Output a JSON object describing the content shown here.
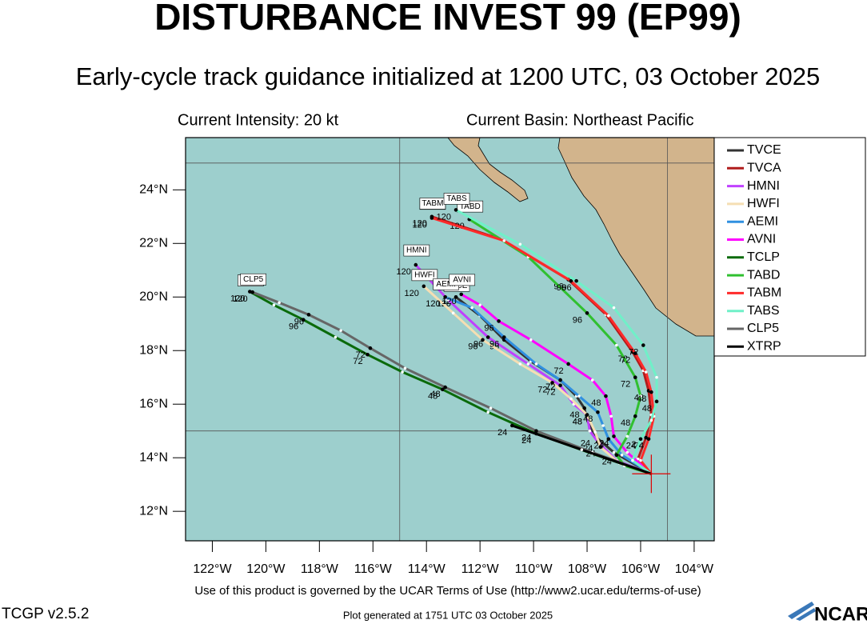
{
  "chart_data": {
    "type": "track-map",
    "title": "DISTURBANCE INVEST 99 (EP99)",
    "subtitle": "Early-cycle track guidance initialized at 1200 UTC, 03 October 2025",
    "intensity": "Current Intensity: 20 kt",
    "basin": "Current Basin: Northeast Pacific",
    "footer": "Use of this product is governed by the UCAR Terms of Use (http://www2.ucar.edu/terms-of-use)",
    "version": "TCGP v2.5.2",
    "generated": "Plot generated at 1751 UTC   03 October 2025",
    "logo": "NCAR",
    "xlim": [
      -123,
      -103.25
    ],
    "ylim": [
      10.9,
      25.95
    ],
    "xticks": [
      {
        "value": -122,
        "label": "122°W"
      },
      {
        "value": -120,
        "label": "120°W"
      },
      {
        "value": -118,
        "label": "118°W"
      },
      {
        "value": -116,
        "label": "116°W"
      },
      {
        "value": -114,
        "label": "114°W"
      },
      {
        "value": -112,
        "label": "112°W"
      },
      {
        "value": -110,
        "label": "110°W"
      },
      {
        "value": -108,
        "label": "108°W"
      },
      {
        "value": -106,
        "label": "106°W"
      },
      {
        "value": -104,
        "label": "104°W"
      }
    ],
    "yticks": [
      {
        "value": 12,
        "label": "12°N"
      },
      {
        "value": 14,
        "label": "14°N"
      },
      {
        "value": 16,
        "label": "16°N"
      },
      {
        "value": 18,
        "label": "18°N"
      },
      {
        "value": 20,
        "label": "20°N"
      },
      {
        "value": 22,
        "label": "22°N"
      },
      {
        "value": 24,
        "label": "24°N"
      }
    ],
    "xgrid": [
      -115,
      -105
    ],
    "ygrid": [
      15,
      25
    ],
    "forecast_hours": [
      0,
      12,
      24,
      36,
      48,
      60,
      72,
      84,
      96,
      108,
      120
    ],
    "series": [
      {
        "name": "TVCE",
        "color": "#333333",
        "x": [
          -105.6,
          -107.0,
          -107.7,
          -108.0,
          -108.1,
          -108.4,
          -109.0,
          -110.1,
          -111.1,
          -112.0,
          -112.9
        ],
        "values": [
          13.4,
          14.2,
          14.8,
          15.4,
          15.85,
          16.3,
          16.9,
          17.6,
          18.4,
          19.3,
          20.0
        ]
      },
      {
        "name": "TVCA",
        "color": "#b01c1c",
        "x": [
          -105.6,
          -106.1,
          -105.8,
          -105.6,
          -105.7,
          -105.9,
          -106.3,
          -107.3,
          -108.7,
          -111.2,
          -113.8
        ],
        "values": [
          13.4,
          13.95,
          14.75,
          15.6,
          16.5,
          17.25,
          17.95,
          19.35,
          20.65,
          22.15,
          23.0
        ]
      },
      {
        "name": "HMNI",
        "color": "#c040ff",
        "x": [
          -105.6,
          -106.9,
          -107.6,
          -107.9,
          -108.0,
          -108.5,
          -109.0,
          -110.2,
          -111.7,
          -113.2,
          -114.4
        ],
        "values": [
          13.4,
          13.9,
          14.6,
          15.0,
          15.6,
          16.0,
          16.7,
          17.5,
          18.5,
          19.9,
          21.2
        ]
      },
      {
        "name": "HWFI",
        "color": "#f5deb3",
        "x": [
          -105.6,
          -106.8,
          -107.5,
          -107.7,
          -108.0,
          -108.6,
          -109.3,
          -110.5,
          -111.9,
          -113.0,
          -114.1
        ],
        "values": [
          13.4,
          13.8,
          14.4,
          14.96,
          15.6,
          16.2,
          16.8,
          17.5,
          18.4,
          19.4,
          20.4
        ]
      },
      {
        "name": "AEMI",
        "color": "#3090e0",
        "x": [
          -105.6,
          -106.7,
          -107.2,
          -107.4,
          -107.6,
          -108.3,
          -109.0,
          -109.9,
          -111.1,
          -112.3,
          -113.3
        ],
        "values": [
          13.4,
          14.1,
          14.7,
          15.2,
          15.7,
          16.3,
          16.9,
          17.5,
          18.5,
          19.6,
          20.0
        ]
      },
      {
        "name": "AVNI",
        "color": "#ff00ff",
        "x": [
          -105.6,
          -106.5,
          -107.0,
          -107.1,
          -107.3,
          -107.8,
          -108.7,
          -110.1,
          -111.3,
          -112.0,
          -112.7
        ],
        "values": [
          13.4,
          14.2,
          14.8,
          15.55,
          16.3,
          16.9,
          17.5,
          18.4,
          19.1,
          19.7,
          20.1
        ]
      },
      {
        "name": "TCLP",
        "color": "#0a6a0a",
        "x": [
          -105.6,
          -107.8,
          -109.9,
          -111.7,
          -113.4,
          -114.9,
          -116.2,
          -117.4,
          -118.6,
          -119.7,
          -120.6
        ],
        "values": [
          13.4,
          14.15,
          14.9,
          15.7,
          16.55,
          17.2,
          17.85,
          18.5,
          19.15,
          19.7,
          20.2
        ]
      },
      {
        "name": "TABD",
        "color": "#30c030",
        "x": [
          -105.6,
          -106.6,
          -106.9,
          -106.5,
          -106.2,
          -106.0,
          -106.2,
          -106.9,
          -108.0,
          -110.2,
          -112.4
        ],
        "values": [
          13.4,
          13.7,
          14.1,
          14.8,
          15.55,
          16.3,
          17.0,
          18.2,
          19.4,
          21.5,
          22.9
        ]
      },
      {
        "name": "TABM",
        "color": "#ff2a2a",
        "x": [
          -105.6,
          -106.0,
          -105.7,
          -105.5,
          -105.6,
          -105.8,
          -106.2,
          -107.2,
          -108.6,
          -111.1,
          -113.8
        ],
        "values": [
          13.4,
          13.9,
          14.7,
          15.55,
          16.45,
          17.2,
          17.9,
          19.3,
          20.6,
          22.1,
          22.95
        ]
      },
      {
        "name": "TABS",
        "color": "#70f0c8",
        "x": [
          -105.6,
          -106.3,
          -106.0,
          -105.6,
          -105.4,
          -105.4,
          -105.9,
          -107.0,
          -108.4,
          -110.5,
          -112.9
        ],
        "values": [
          13.4,
          13.9,
          14.7,
          15.4,
          16.1,
          17.0,
          18.2,
          19.6,
          20.6,
          21.97,
          23.25
        ]
      },
      {
        "name": "CLP5",
        "color": "#666666",
        "x": [
          -105.6,
          -107.8,
          -109.9,
          -111.6,
          -113.3,
          -114.8,
          -116.1,
          -117.2,
          -118.4,
          -119.5,
          -120.5
        ],
        "values": [
          13.4,
          14.2,
          15.0,
          15.85,
          16.63,
          17.34,
          18.09,
          18.75,
          19.34,
          19.79,
          20.18
        ]
      },
      {
        "name": "XTRP",
        "color": "#000000",
        "x": [
          -105.6,
          -108.2,
          -110.8,
          null,
          null,
          null,
          null,
          null,
          null,
          null,
          null
        ],
        "values": [
          13.4,
          14.3,
          15.2,
          null,
          null,
          null,
          null,
          null,
          null,
          null,
          null
        ]
      }
    ]
  }
}
